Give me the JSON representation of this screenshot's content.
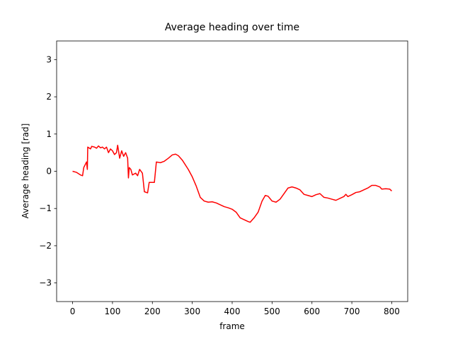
{
  "chart_data": {
    "type": "line",
    "title": "Average heading over time",
    "x_label": "frame",
    "y_label": "Average heading [rad]",
    "color": "#ff0000",
    "x": [
      0,
      10,
      20,
      25,
      28,
      35,
      37,
      38,
      45,
      48,
      55,
      60,
      65,
      70,
      75,
      80,
      85,
      90,
      95,
      100,
      105,
      110,
      113,
      118,
      123,
      128,
      133,
      138,
      140,
      142,
      146,
      150,
      158,
      163,
      168,
      175,
      180,
      188,
      192,
      200,
      205,
      210,
      220,
      230,
      240,
      250,
      258,
      265,
      275,
      290,
      300,
      310,
      320,
      330,
      340,
      350,
      360,
      370,
      380,
      390,
      400,
      410,
      420,
      430,
      440,
      445,
      455,
      465,
      475,
      483,
      490,
      500,
      510,
      520,
      530,
      540,
      550,
      560,
      570,
      580,
      590,
      600,
      610,
      620,
      630,
      640,
      650,
      660,
      670,
      680,
      685,
      690,
      700,
      710,
      720,
      730,
      740,
      750,
      760,
      770,
      775,
      785,
      795,
      800
    ],
    "values": [
      0.0,
      -0.03,
      -0.1,
      -0.12,
      0.1,
      0.25,
      0.05,
      0.65,
      0.6,
      0.67,
      0.65,
      0.62,
      0.68,
      0.63,
      0.65,
      0.6,
      0.65,
      0.5,
      0.6,
      0.55,
      0.45,
      0.5,
      0.7,
      0.35,
      0.55,
      0.4,
      0.5,
      0.35,
      -0.18,
      0.1,
      0.05,
      -0.1,
      -0.05,
      -0.12,
      0.05,
      -0.05,
      -0.55,
      -0.58,
      -0.3,
      -0.3,
      -0.3,
      0.25,
      0.23,
      0.27,
      0.35,
      0.44,
      0.46,
      0.42,
      0.3,
      0.05,
      -0.15,
      -0.4,
      -0.7,
      -0.8,
      -0.83,
      -0.82,
      -0.85,
      -0.9,
      -0.95,
      -0.98,
      -1.02,
      -1.1,
      -1.25,
      -1.3,
      -1.35,
      -1.37,
      -1.25,
      -1.1,
      -0.8,
      -0.65,
      -0.67,
      -0.8,
      -0.83,
      -0.75,
      -0.6,
      -0.45,
      -0.42,
      -0.45,
      -0.5,
      -0.62,
      -0.65,
      -0.68,
      -0.63,
      -0.6,
      -0.7,
      -0.72,
      -0.75,
      -0.78,
      -0.73,
      -0.68,
      -0.62,
      -0.68,
      -0.63,
      -0.57,
      -0.55,
      -0.5,
      -0.45,
      -0.38,
      -0.38,
      -0.42,
      -0.48,
      -0.47,
      -0.48,
      -0.53
    ],
    "xlim": [
      -40,
      840
    ],
    "xticks": [
      0,
      100,
      200,
      300,
      400,
      500,
      600,
      700,
      800
    ],
    "ylim": [
      -3.5,
      3.5
    ],
    "yticks": [
      {
        "value": -3,
        "label": "−3"
      },
      {
        "value": -2,
        "label": "−2"
      },
      {
        "value": -1,
        "label": "−1"
      },
      0,
      1,
      2,
      3
    ],
    "grid": false
  }
}
